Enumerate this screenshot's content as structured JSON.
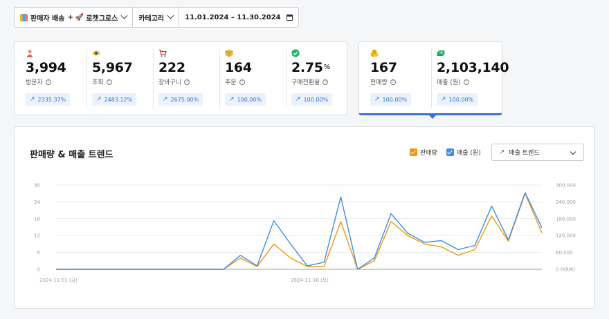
{
  "filters": {
    "seller": "판매자 배송",
    "plus": "+",
    "rocket": "로켓그로스",
    "category": "카테고리",
    "date_range": "11.01.2024 – 11.30.2024"
  },
  "metrics": [
    {
      "icon": "person-icon",
      "value": "3,994",
      "label": "방문자",
      "change": "2335.37%"
    },
    {
      "icon": "eye-icon",
      "value": "5,967",
      "label": "조회",
      "change": "2483.12%"
    },
    {
      "icon": "cart-icon",
      "value": "222",
      "label": "장바구니",
      "change": "2675.00%"
    },
    {
      "icon": "box-icon",
      "value": "164",
      "label": "주문",
      "change": "100.00%"
    },
    {
      "icon": "check-icon",
      "value": "2.75",
      "unit": "%",
      "label": "구매전환율",
      "change": "100.00%"
    }
  ],
  "sales_metrics": [
    {
      "icon": "coins-icon",
      "value": "167",
      "label": "판매량",
      "change": "100.00%"
    },
    {
      "icon": "money-icon",
      "value": "2,103,140",
      "label": "매출 (원)",
      "change": "100.00%"
    }
  ],
  "chart": {
    "title": "판매량 & 매출 트렌드",
    "legend_sales": "판매량",
    "legend_revenue": "매출 (원)",
    "dropdown": "매출 트렌드",
    "colors": {
      "sales": "#f0960e",
      "revenue": "#3d8fe0"
    }
  },
  "chart_data": {
    "type": "line",
    "x_tick_labels": [
      "2024-11-01 (금)",
      "2024-11-16 (토)"
    ],
    "y_left_ticks": [
      0,
      6,
      12,
      18,
      24,
      30
    ],
    "y_right_ticks": [
      "0 (KRW)",
      "60,000",
      "120,000",
      "180,000",
      "240,000",
      "300,000"
    ],
    "ylim_left": [
      0,
      30
    ],
    "ylim_right": [
      0,
      300000
    ],
    "grid": true,
    "series": [
      {
        "name": "판매량",
        "axis": "left",
        "values": [
          0,
          0,
          0,
          0,
          0,
          0,
          0,
          0,
          0,
          0,
          0,
          4,
          1,
          9,
          4,
          1,
          1,
          17,
          0,
          3,
          17,
          12,
          9,
          8,
          5,
          7,
          19,
          10,
          27,
          13
        ]
      },
      {
        "name": "매출 (원)",
        "axis": "right",
        "values": [
          0,
          0,
          0,
          0,
          0,
          0,
          0,
          0,
          0,
          0,
          0,
          50000,
          12000,
          173000,
          90000,
          12000,
          25000,
          258000,
          0,
          40000,
          198000,
          128000,
          96000,
          102000,
          70000,
          85000,
          225000,
          105000,
          273000,
          148000
        ]
      }
    ]
  }
}
